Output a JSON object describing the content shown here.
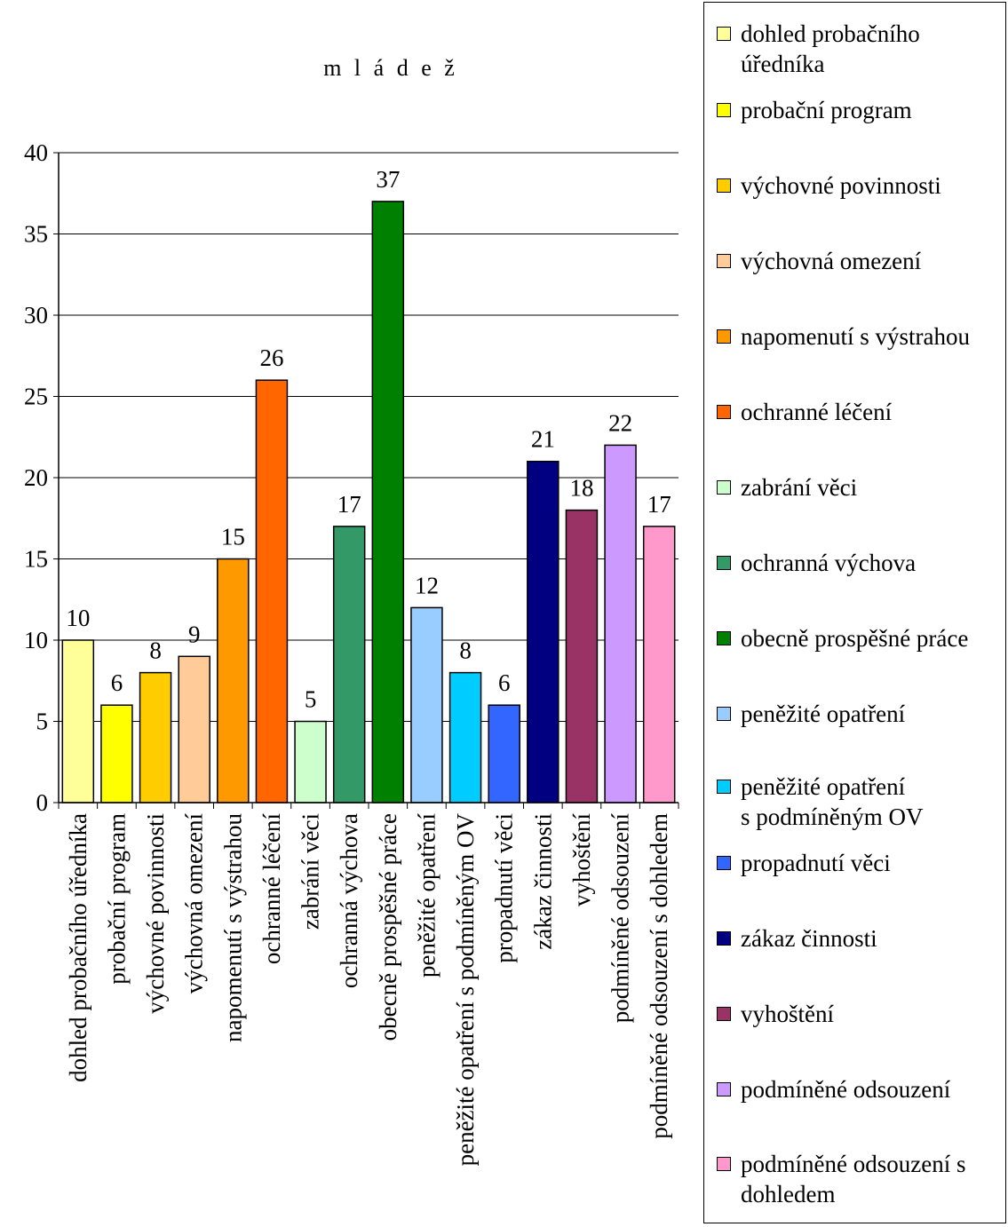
{
  "chart_data": {
    "type": "bar",
    "title": "m l á d e ž",
    "ylim": [
      0,
      40
    ],
    "yticks": [
      0,
      5,
      10,
      15,
      20,
      25,
      30,
      35,
      40
    ],
    "grid": true,
    "legend_position": "right",
    "categories": [
      "dohled probačního úředníka",
      "probační program",
      "výchovné povinnosti",
      "výchovná omezení",
      "napomenutí s výstrahou",
      "ochranné léčení",
      "zabrání věci",
      "ochranná výchova",
      "obecně prospěšné práce",
      "peněžité opatření",
      "peněžité opatření s podmíněným OV",
      "propadnutí věci",
      "zákaz činnosti",
      "vyhoštění",
      "podmíněné odsouzení",
      "podmíněné odsouzení s dohledem"
    ],
    "values": [
      10,
      6,
      8,
      9,
      15,
      26,
      5,
      17,
      37,
      12,
      8,
      6,
      21,
      18,
      22,
      17
    ],
    "colors": [
      "#FFFF99",
      "#FFFF00",
      "#FFCC00",
      "#FFCC99",
      "#FF9900",
      "#FF6600",
      "#CCFFCC",
      "#339966",
      "#008000",
      "#99CCFF",
      "#00CCFF",
      "#3366FF",
      "#000080",
      "#993366",
      "#CC99FF",
      "#FF99CC"
    ],
    "legend": [
      "dohled probačního\núředníka",
      "probační program",
      "výchovné povinnosti",
      "výchovná omezení",
      "napomenutí s výstrahou",
      "ochranné léčení",
      "zabrání věci",
      "ochranná výchova",
      "obecně prospěšné práce",
      "peněžité opatření",
      "peněžité opatření\ns podmíněným OV",
      "propadnutí věci",
      "zákaz činnosti",
      "vyhoštění",
      "podmíněné odsouzení",
      "podmíněné odsouzení s\ndohledem"
    ]
  }
}
